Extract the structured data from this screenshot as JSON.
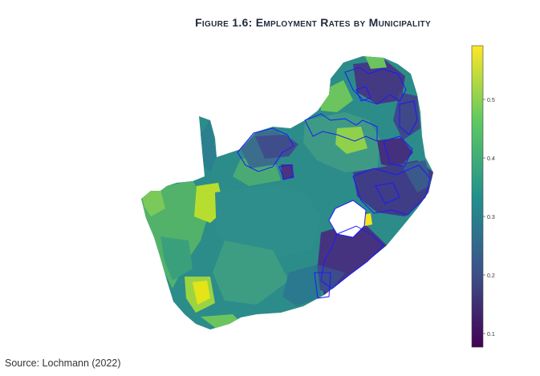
{
  "title": "Figure 1.6: Employment Rates by Municipality",
  "source": "Source: Lochmann (2022)",
  "colorbar": {
    "ticks": [
      "0.1",
      "0.2",
      "0.3",
      "0.4",
      "0.5"
    ],
    "tick_values": [
      0.1,
      0.2,
      0.3,
      0.4,
      0.5
    ],
    "range": [
      0.07,
      0.6
    ],
    "colormap": "viridis",
    "colormap_stops": [
      "#440154",
      "#3b528b",
      "#21918c",
      "#5ec962",
      "#fde725"
    ]
  },
  "map": {
    "outline_color": "#1a1aff",
    "lesotho_fill": "#ffffff"
  }
}
